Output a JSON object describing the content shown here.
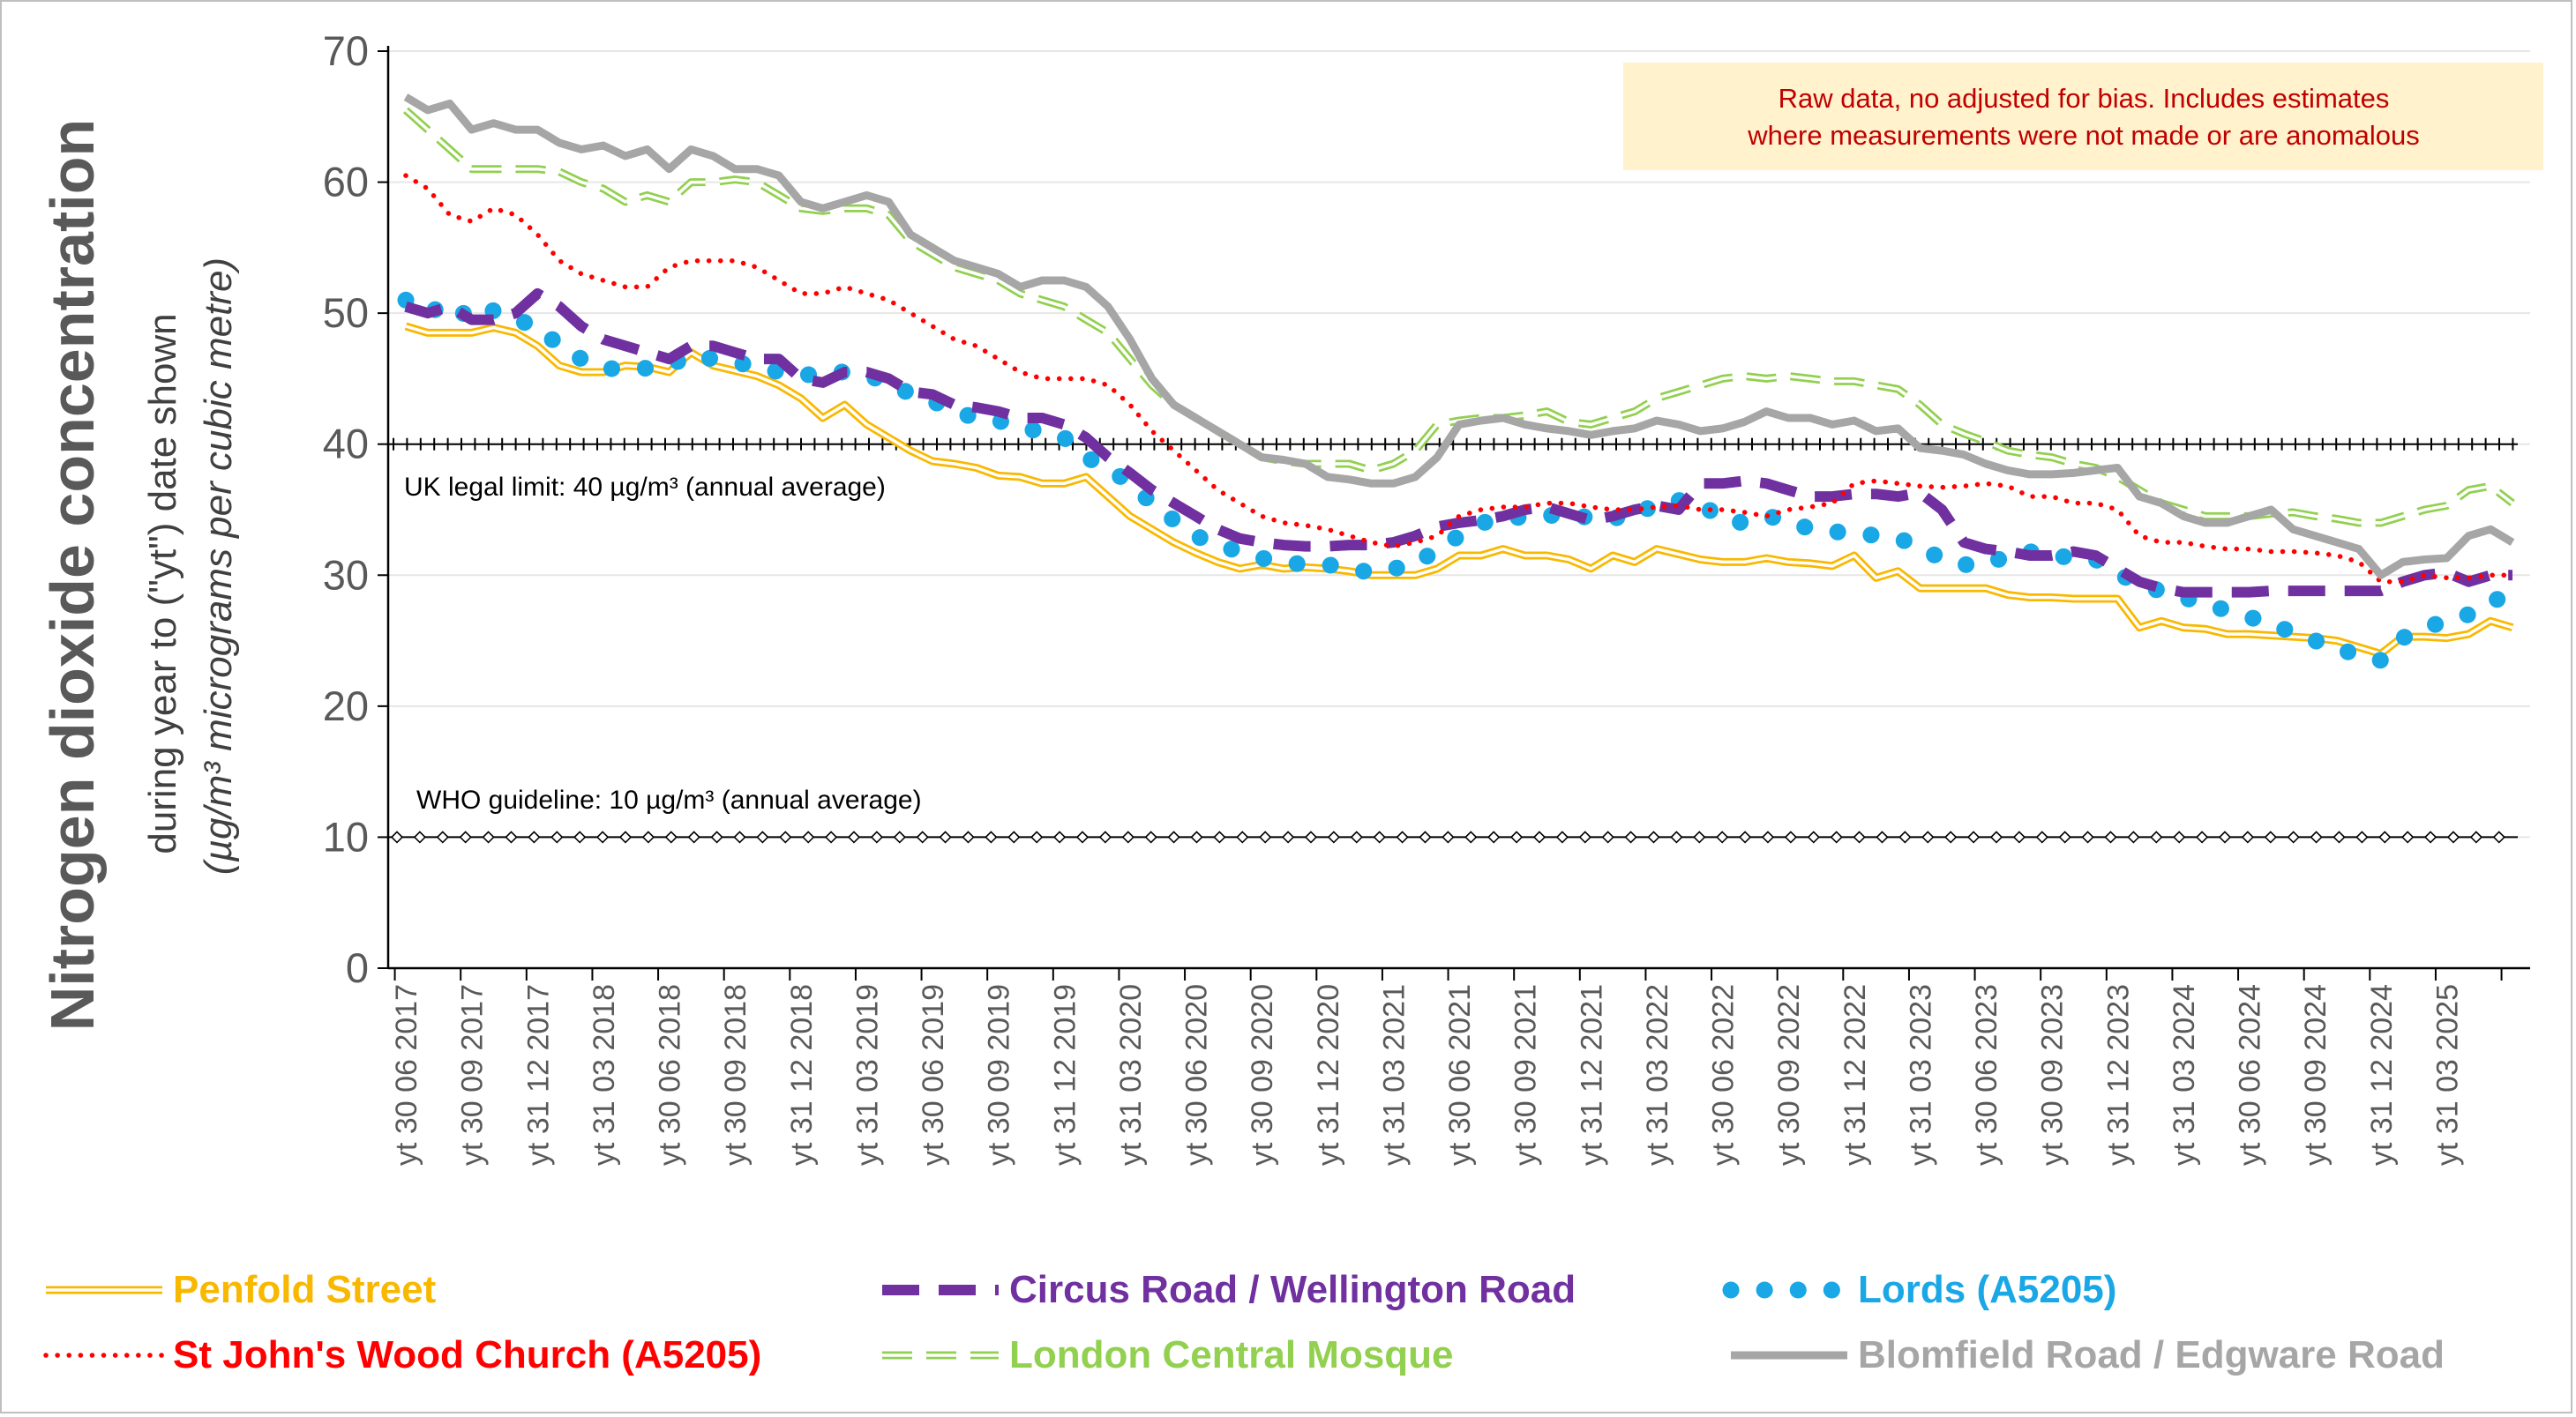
{
  "chart_data": {
    "type": "line",
    "ylabel": "Nitrogen dioxide concentration",
    "ylabel_sub": "during year to (\"yt\") date shown",
    "ylabel_unit": "(µg/m³  micrograms per cubic metre)",
    "ylim": [
      0,
      70
    ],
    "yticks": [
      "0",
      "10",
      "20",
      "30",
      "40",
      "50",
      "60",
      "70"
    ],
    "grid": true,
    "legend_position": "bottom",
    "note_lines": [
      "Raw data, no adjusted for bias.  Includes estimates",
      "where measurements were not made or are anomalous"
    ],
    "reference_lines": [
      {
        "label": "UK legal limit: 40 µg/m³ (annual average)",
        "value": 40
      },
      {
        "label": "WHO guideline: 10 µg/m³ (annual average)",
        "value": 10
      }
    ],
    "x_tick_labels": [
      "yt 30 06 2017",
      "yt 30 09 2017",
      "yt 31 12 2017",
      "yt 31 03 2018",
      "yt 30 06 2018",
      "yt 30 09 2018",
      "yt 31 12 2018",
      "yt 31 03 2019",
      "yt 30 06 2019",
      "yt 30 09 2019",
      "yt 31 12 2019",
      "yt 31 03 2020",
      "yt 30 06 2020",
      "yt 30 09 2020",
      "yt 31 12 2020",
      "yt 31 03 2021",
      "yt 30 06 2021",
      "yt 30 09 2021",
      "yt 31 12 2021",
      "yt 31 03 2022",
      "yt 30 06 2022",
      "yt 30 09 2022",
      "yt 31 12 2022",
      "yt 31 03 2023",
      "yt 30 06 2023",
      "yt 30 09 2023",
      "yt 31 12 2023",
      "yt 31 03 2024",
      "yt 30 06 2024",
      "yt 30 09 2024",
      "yt 31 12 2024",
      "yt 31 03 2025"
    ],
    "x_months": [
      "2017-06",
      "2017-07",
      "2017-08",
      "2017-09",
      "2017-10",
      "2017-11",
      "2017-12",
      "2018-01",
      "2018-02",
      "2018-03",
      "2018-04",
      "2018-05",
      "2018-06",
      "2018-07",
      "2018-08",
      "2018-09",
      "2018-10",
      "2018-11",
      "2018-12",
      "2019-01",
      "2019-02",
      "2019-03",
      "2019-04",
      "2019-05",
      "2019-06",
      "2019-07",
      "2019-08",
      "2019-09",
      "2019-10",
      "2019-11",
      "2019-12",
      "2020-01",
      "2020-02",
      "2020-03",
      "2020-04",
      "2020-05",
      "2020-06",
      "2020-07",
      "2020-08",
      "2020-09",
      "2020-10",
      "2020-11",
      "2020-12",
      "2021-01",
      "2021-02",
      "2021-03",
      "2021-04",
      "2021-05",
      "2021-06",
      "2021-07",
      "2021-08",
      "2021-09",
      "2021-10",
      "2021-11",
      "2021-12",
      "2022-01",
      "2022-02",
      "2022-03",
      "2022-04",
      "2022-05",
      "2022-06",
      "2022-07",
      "2022-08",
      "2022-09",
      "2022-10",
      "2022-11",
      "2022-12",
      "2023-01",
      "2023-02",
      "2023-03",
      "2023-04",
      "2023-05",
      "2023-06",
      "2023-07",
      "2023-08",
      "2023-09",
      "2023-10",
      "2023-11",
      "2023-12",
      "2024-01",
      "2024-02",
      "2024-03",
      "2024-04",
      "2024-05",
      "2024-06",
      "2024-07",
      "2024-08",
      "2024-09",
      "2024-10",
      "2024-11",
      "2024-12",
      "2025-01",
      "2025-02",
      "2025-03",
      "2025-04",
      "2025-05",
      "2025-06"
    ],
    "series": [
      {
        "name": "Penfold Street",
        "color": "#f9b800",
        "style": "double",
        "values": [
          49.0,
          48.5,
          48.5,
          48.5,
          48.9,
          48.5,
          47.5,
          46.0,
          45.5,
          45.5,
          46.0,
          45.9,
          45.5,
          47.0,
          46.0,
          45.6,
          45.2,
          44.5,
          43.5,
          42.0,
          43.0,
          41.5,
          40.5,
          39.5,
          38.7,
          38.5,
          38.2,
          37.6,
          37.5,
          37.0,
          37.0,
          37.5,
          36.0,
          34.5,
          33.5,
          32.5,
          31.7,
          31.0,
          30.5,
          30.8,
          30.5,
          30.6,
          30.5,
          30.3,
          30.0,
          30.0,
          30.0,
          30.5,
          31.5,
          31.5,
          32.0,
          31.5,
          31.5,
          31.2,
          30.5,
          31.5,
          31.0,
          32.0,
          31.6,
          31.2,
          31.0,
          31.0,
          31.3,
          31.0,
          30.9,
          30.7,
          31.5,
          29.8,
          30.3,
          29.0,
          29.0,
          29.0,
          29.0,
          28.5,
          28.3,
          28.3,
          28.2,
          28.2,
          28.2,
          26.0,
          26.5,
          26.0,
          25.9,
          25.5,
          25.5,
          25.4,
          25.3,
          25.2,
          25.0,
          24.5,
          24.0,
          25.3,
          25.3,
          25.2,
          25.5,
          26.5,
          26.0
        ]
      },
      {
        "name": "Circus Road / Wellington Road",
        "color": "#7030a0",
        "style": "dashed",
        "values": [
          50.5,
          50.0,
          50.5,
          49.5,
          49.5,
          50.0,
          51.5,
          50.5,
          49.0,
          48.0,
          47.5,
          47.0,
          46.5,
          47.5,
          47.5,
          47.0,
          46.5,
          46.5,
          45.0,
          44.7,
          45.5,
          45.5,
          45.0,
          44.0,
          43.8,
          43.0,
          42.8,
          42.5,
          42.0,
          42.0,
          41.5,
          40.5,
          39.0,
          37.8,
          36.5,
          35.5,
          34.5,
          33.5,
          32.8,
          32.5,
          32.3,
          32.2,
          32.2,
          32.3,
          32.3,
          32.5,
          33.0,
          33.7,
          34.0,
          34.2,
          34.5,
          35.0,
          35.2,
          34.7,
          34.2,
          34.5,
          35.0,
          35.3,
          35.0,
          37.0,
          37.0,
          37.2,
          37.0,
          36.5,
          36.0,
          36.0,
          36.2,
          36.2,
          36.0,
          36.3,
          35.0,
          32.5,
          32.0,
          31.8,
          31.5,
          31.5,
          31.8,
          31.5,
          30.5,
          29.5,
          29.0,
          28.7,
          28.7,
          28.7,
          28.7,
          28.8,
          28.8,
          28.8,
          28.8,
          28.8,
          28.8,
          29.5,
          30.0,
          30.2,
          29.5,
          30.0,
          30.0
        ]
      },
      {
        "name": "Lords (A5205)",
        "color": "#1aa7e6",
        "style": "dotted",
        "values": [
          51.0,
          50.0,
          50.8,
          49.5,
          50.2,
          49.5,
          49.0,
          47.5,
          46.5,
          45.8,
          45.7,
          45.8,
          46.0,
          46.8,
          46.5,
          46.2,
          46.0,
          45.5,
          45.2,
          45.5,
          45.5,
          45.2,
          44.8,
          43.8,
          43.3,
          42.5,
          42.0,
          41.8,
          41.2,
          41.0,
          40.5,
          39.0,
          38.2,
          37.0,
          35.5,
          34.2,
          33.0,
          32.3,
          31.8,
          31.3,
          31.0,
          30.8,
          30.8,
          30.5,
          30.2,
          30.5,
          30.8,
          32.0,
          33.0,
          34.0,
          34.2,
          34.5,
          34.5,
          34.8,
          34.3,
          34.2,
          35.2,
          35.0,
          35.7,
          35.5,
          34.2,
          34.0,
          34.5,
          34.2,
          33.5,
          33.3,
          33.3,
          33.0,
          32.8,
          32.2,
          31.2,
          30.8,
          30.8,
          31.5,
          31.8,
          31.3,
          31.5,
          31.2,
          30.2,
          29.2,
          28.8,
          28.3,
          27.8,
          27.3,
          26.8,
          26.3,
          25.6,
          25.0,
          24.5,
          23.8,
          23.5,
          25.2,
          26.0,
          26.5,
          27.0,
          28.0,
          28.5
        ]
      },
      {
        "name": "St John's Wood Church (A5205)",
        "color": "#ff0000",
        "style": "dotted",
        "values": [
          60.5,
          59.5,
          57.5,
          57.0,
          58.0,
          57.5,
          56.0,
          54.0,
          53.0,
          52.5,
          52.0,
          52.0,
          53.5,
          54.0,
          54.0,
          54.0,
          53.5,
          52.5,
          51.5,
          51.5,
          52.0,
          51.5,
          51.0,
          50.0,
          49.0,
          48.0,
          47.5,
          46.5,
          45.5,
          45.0,
          45.0,
          45.0,
          44.5,
          43.0,
          41.0,
          39.5,
          38.0,
          36.5,
          35.5,
          34.5,
          34.0,
          33.8,
          33.5,
          33.0,
          32.5,
          32.2,
          32.5,
          33.0,
          34.5,
          35.0,
          35.2,
          35.2,
          35.5,
          35.5,
          35.2,
          35.0,
          35.0,
          35.2,
          35.3,
          35.0,
          35.0,
          34.8,
          34.5,
          35.0,
          35.2,
          35.5,
          37.0,
          37.2,
          37.0,
          36.8,
          36.7,
          36.8,
          37.0,
          36.8,
          36.0,
          36.0,
          35.5,
          35.5,
          35.0,
          33.0,
          32.5,
          32.5,
          32.2,
          32.0,
          32.0,
          31.8,
          31.8,
          31.7,
          31.5,
          31.0,
          29.5,
          29.5,
          30.0,
          29.8,
          29.8,
          30.0,
          30.0
        ]
      },
      {
        "name": "London Central Mosque",
        "color": "#92d050",
        "style": "dashed-double",
        "values": [
          65.5,
          64.0,
          62.5,
          61.0,
          61.0,
          61.0,
          61.0,
          60.8,
          60.0,
          59.5,
          58.5,
          59.0,
          58.5,
          60.0,
          60.0,
          60.2,
          60.0,
          59.0,
          58.0,
          57.8,
          58.0,
          58.0,
          57.5,
          55.5,
          54.5,
          53.5,
          53.0,
          52.5,
          51.5,
          51.0,
          50.5,
          49.5,
          48.5,
          46.5,
          44.5,
          43.0,
          42.0,
          41.0,
          40.0,
          39.0,
          38.7,
          38.5,
          38.5,
          38.5,
          38.0,
          38.5,
          39.5,
          41.5,
          41.8,
          42.0,
          42.0,
          42.2,
          42.5,
          41.7,
          41.5,
          42.0,
          42.5,
          43.5,
          44.0,
          44.5,
          45.0,
          45.2,
          45.0,
          45.2,
          45.0,
          44.8,
          44.8,
          44.5,
          44.2,
          43.0,
          41.5,
          40.8,
          40.2,
          39.5,
          39.2,
          39.0,
          38.5,
          38.2,
          37.5,
          36.5,
          35.5,
          35.0,
          34.5,
          34.5,
          34.5,
          34.7,
          34.8,
          34.5,
          34.3,
          34.0,
          34.0,
          34.5,
          35.0,
          35.3,
          36.5,
          36.8,
          35.5
        ]
      },
      {
        "name": "Blomfield Road / Edgware Road",
        "color": "#a6a6a6",
        "style": "solid",
        "values": [
          66.5,
          65.5,
          66.0,
          64.0,
          64.5,
          64.0,
          64.0,
          63.0,
          62.5,
          62.8,
          62.0,
          62.5,
          61.0,
          62.5,
          62.0,
          61.0,
          61.0,
          60.5,
          58.5,
          58.0,
          58.5,
          59.0,
          58.5,
          56.0,
          55.0,
          54.0,
          53.5,
          53.0,
          52.0,
          52.5,
          52.5,
          52.0,
          50.5,
          48.0,
          45.0,
          43.0,
          42.0,
          41.0,
          40.0,
          39.0,
          38.8,
          38.5,
          37.5,
          37.3,
          37.0,
          37.0,
          37.5,
          39.0,
          41.5,
          41.8,
          42.0,
          41.5,
          41.2,
          41.0,
          40.7,
          41.0,
          41.2,
          41.8,
          41.5,
          41.0,
          41.2,
          41.7,
          42.5,
          42.0,
          42.0,
          41.5,
          41.8,
          41.0,
          41.2,
          39.7,
          39.5,
          39.2,
          38.5,
          38.0,
          37.7,
          37.7,
          37.8,
          38.0,
          38.2,
          36.0,
          35.5,
          34.5,
          34.0,
          34.0,
          34.5,
          35.0,
          33.5,
          33.0,
          32.5,
          32.0,
          30.0,
          31.0,
          31.2,
          31.3,
          33.0,
          33.5,
          32.5
        ]
      }
    ]
  }
}
